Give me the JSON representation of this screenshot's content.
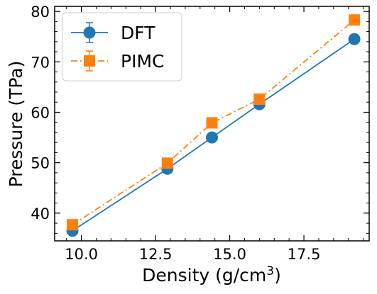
{
  "chart_data": {
    "type": "line",
    "xlabel": "Density (g/cm",
    "xlabel_sup": "3",
    "xlabel_suffix": ")",
    "ylabel": "Pressure (TPa)",
    "xlim": [
      9.1,
      19.7
    ],
    "ylim": [
      34.5,
      81
    ],
    "xticks": [
      10.0,
      12.5,
      15.0,
      17.5
    ],
    "xtick_labels": [
      "10.0",
      "12.5",
      "15.0",
      "17.5"
    ],
    "yticks": [
      40,
      50,
      60,
      70,
      80
    ],
    "ytick_labels": [
      "40",
      "50",
      "60",
      "70",
      "80"
    ],
    "grid": false,
    "legend_position": "top-left",
    "series": [
      {
        "name": "DFT",
        "color": "#1f77b4",
        "marker": "circle",
        "line_style": "solid",
        "x": [
          9.7,
          12.9,
          14.4,
          16.0,
          19.2
        ],
        "y": [
          36.5,
          48.8,
          55.0,
          61.6,
          74.5
        ]
      },
      {
        "name": "PIMC",
        "color": "#ff7f0e",
        "marker": "square",
        "line_style": "dashdot",
        "x": [
          9.7,
          12.9,
          14.4,
          16.0,
          19.2
        ],
        "y": [
          37.7,
          49.9,
          57.9,
          62.6,
          78.3
        ]
      }
    ]
  }
}
